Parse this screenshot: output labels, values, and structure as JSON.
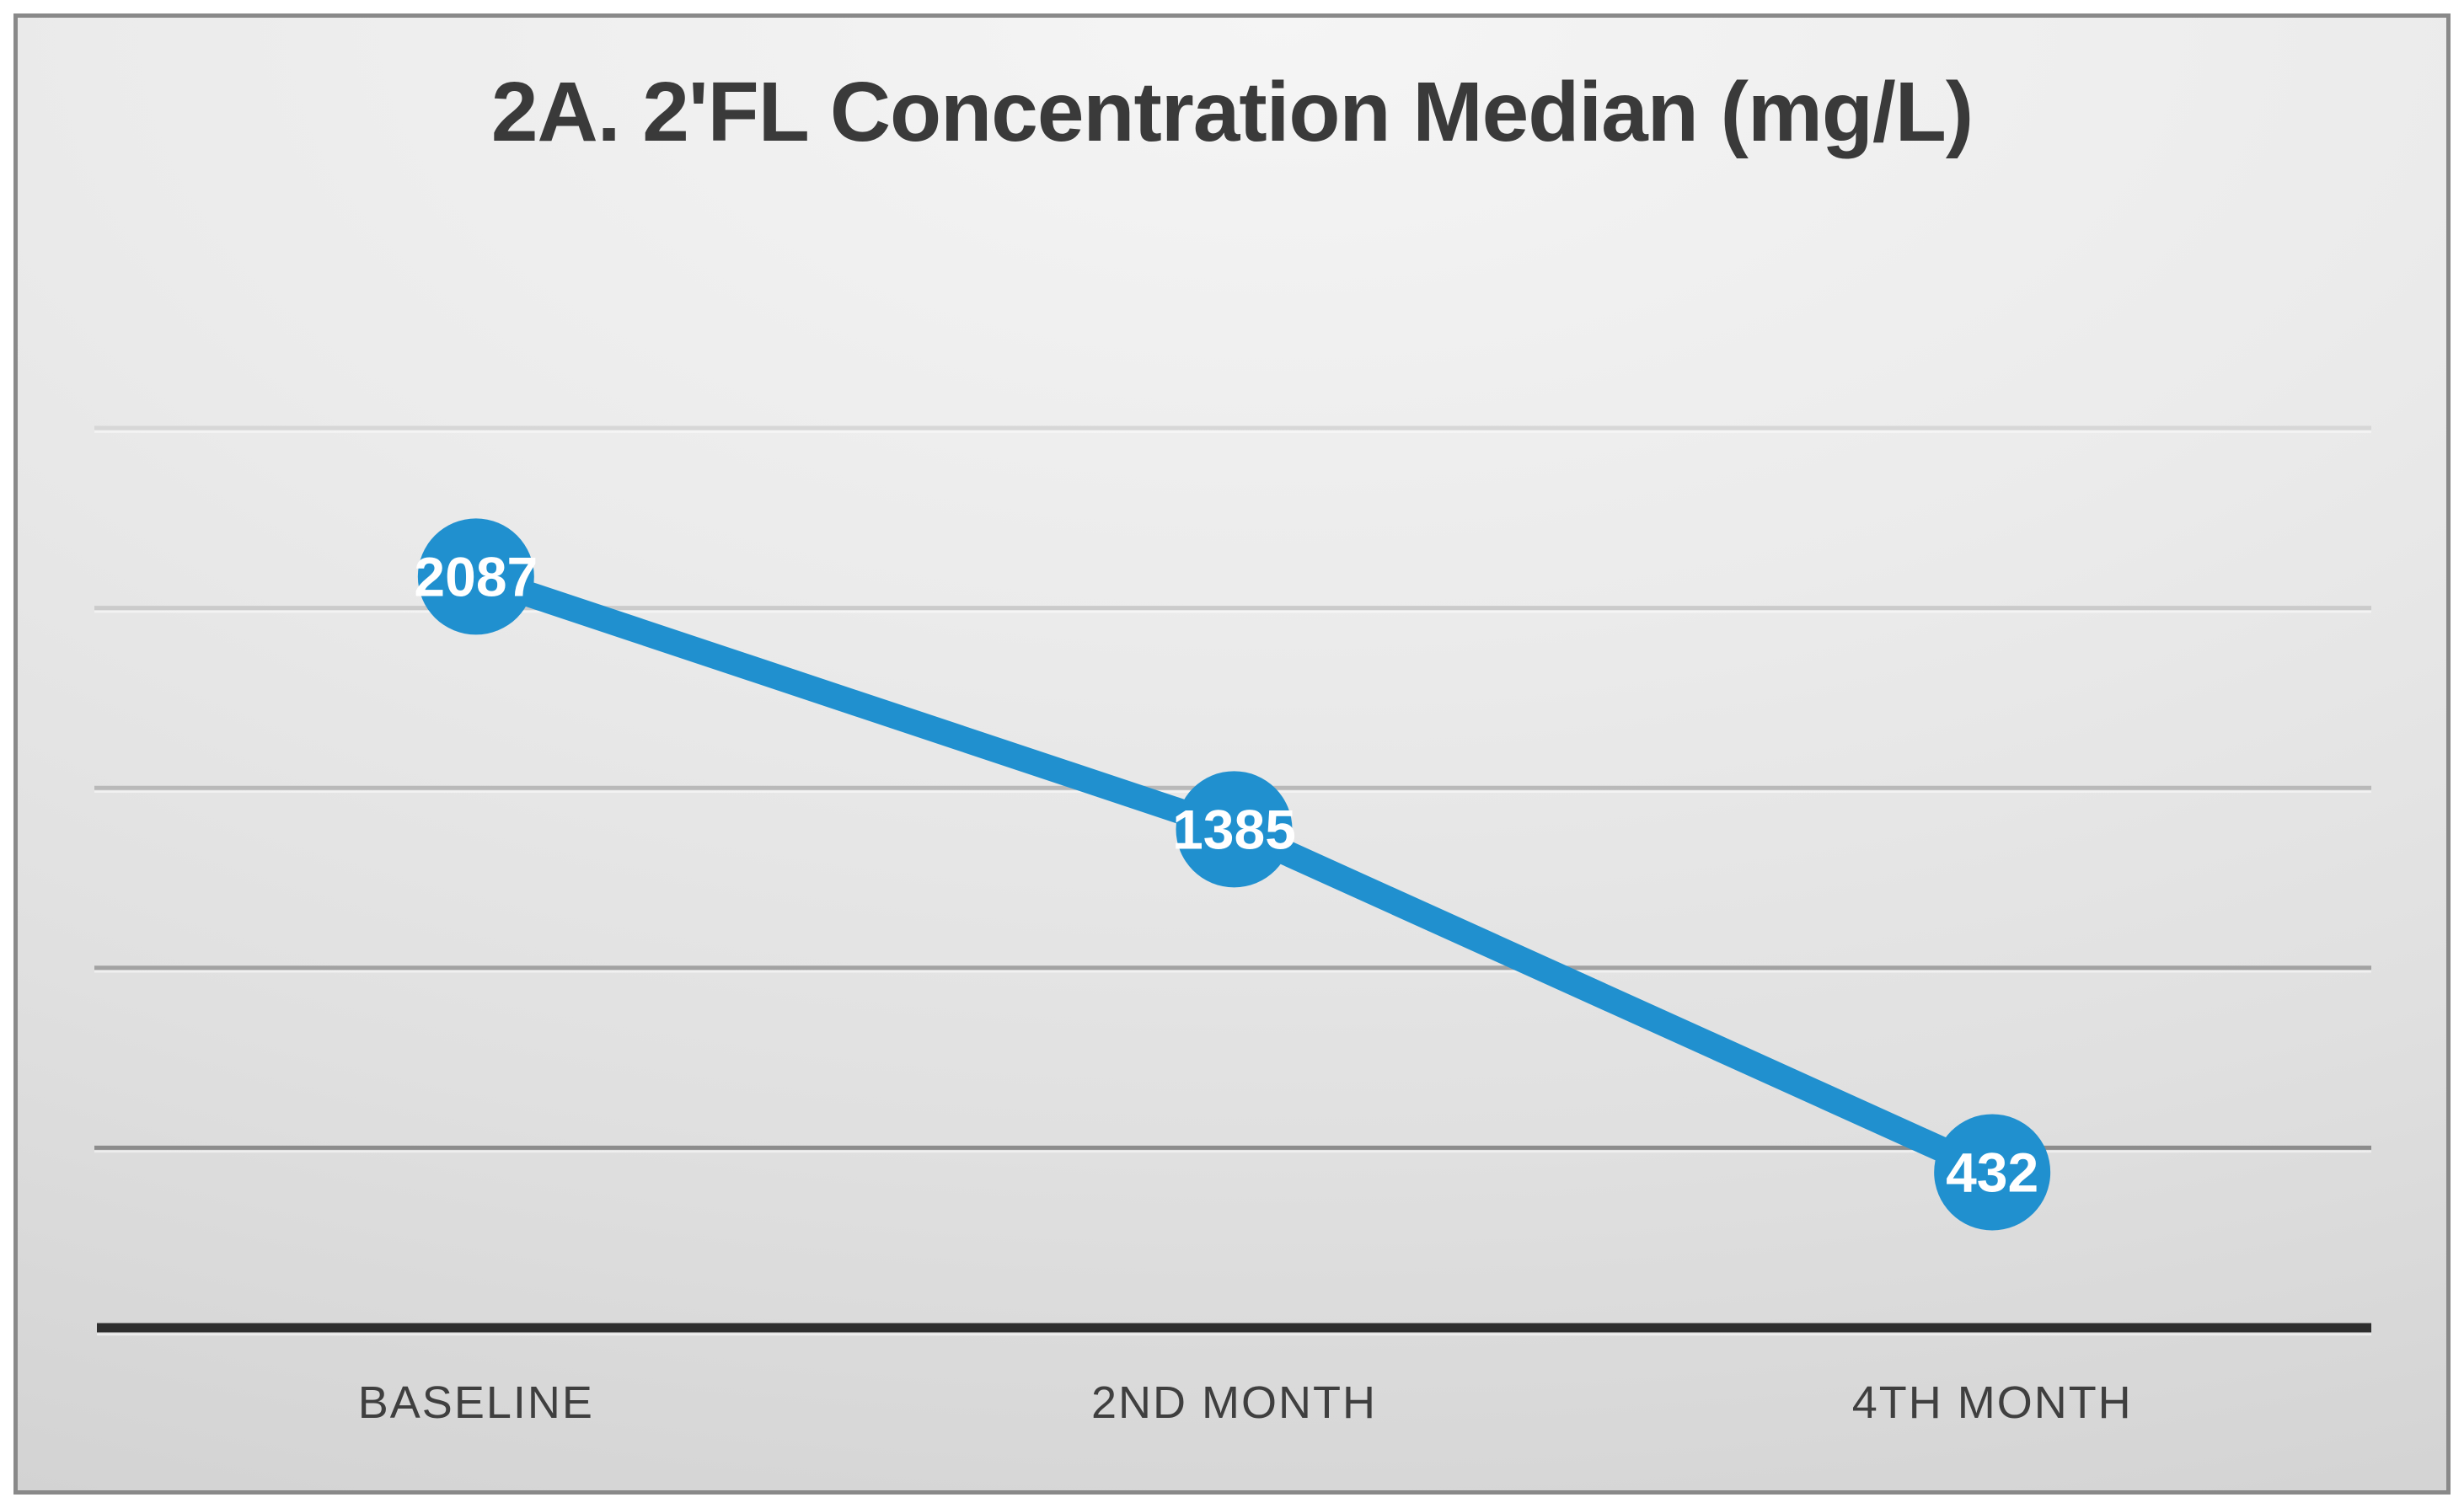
{
  "chart_data": {
    "type": "line",
    "title": "2A. 2'FL Concentration Median (mg/L)",
    "categories": [
      "BASELINE",
      "2ND MONTH",
      "4TH MONTH"
    ],
    "series": [
      {
        "name": "2'FL Concentration Median (mg/L)",
        "values": [
          2087,
          1385,
          432
        ]
      }
    ],
    "data_labels": [
      2087,
      1385,
      432
    ],
    "xlabel": "",
    "ylabel": "",
    "ylim": [
      0,
      2500
    ],
    "grid_step": 500,
    "grid": "horizontal",
    "y_tick_labels_visible": false,
    "legend_position": "none",
    "colors": {
      "line": "#2090cf",
      "marker": "#2090cf",
      "data_label_text": "#ffffff",
      "title_text": "#3a3a3a",
      "category_label_text": "#3f3f3f",
      "axis_line": "#2e2e2e",
      "grid_colors_top_to_bottom": [
        "#d7d7d7",
        "#cbcbcb",
        "#b9b9b9",
        "#a2a2a2",
        "#8c8c8c"
      ],
      "panel_border": "#898989"
    }
  }
}
